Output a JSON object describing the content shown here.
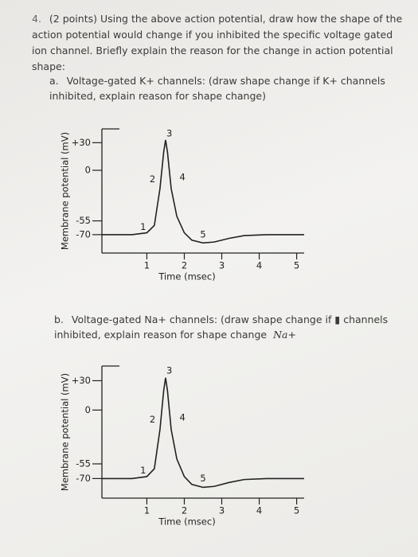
{
  "question": {
    "number": "4.",
    "points": "(2 points)",
    "text": "Using the above action potential, draw how the shape of the action potential would change if you inhibited the specific voltage gated ion channel. Briefly explain the reason for the change in action potential shape:"
  },
  "parts": [
    {
      "letter": "a.",
      "text": "Voltage-gated K+ channels: (draw shape change if K+ channels inhibited, explain reason for shape change)"
    },
    {
      "letter": "b.",
      "text": "Voltage-gated Na+ channels: (draw shape change if ▮ channels inhibited, explain reason for shape change",
      "handwritten": "Na+"
    }
  ],
  "chart_data": [
    {
      "type": "line",
      "xlabel": "Time (msec)",
      "ylabel": "Membrane potential (mV)",
      "color": "#222222",
      "x": [
        -0.2,
        0.6,
        1.0,
        1.2,
        1.35,
        1.45,
        1.5,
        1.55,
        1.65,
        1.8,
        2.0,
        2.2,
        2.5,
        2.8,
        3.2,
        3.6,
        4.2,
        5.2
      ],
      "values": [
        -70,
        -70,
        -68,
        -60,
        -20,
        20,
        33,
        20,
        -20,
        -50,
        -68,
        -76,
        -79,
        -78,
        -74,
        -71,
        -70,
        -70
      ],
      "xlim": [
        -0.2,
        5.2
      ],
      "ylim": [
        -90,
        45
      ],
      "xticks": [
        1,
        2,
        3,
        4,
        5
      ],
      "yticks": [
        {
          "value": 30,
          "label": "+30"
        },
        0,
        -55,
        -70
      ],
      "annotations": [
        {
          "text": "1",
          "x": 0.9,
          "y": -62
        },
        {
          "text": "2",
          "x": 1.15,
          "y": -10
        },
        {
          "text": "3",
          "x": 1.6,
          "y": 40
        },
        {
          "text": "4",
          "x": 1.95,
          "y": -8
        },
        {
          "text": "5",
          "x": 2.5,
          "y": -70
        }
      ]
    },
    {
      "type": "line",
      "xlabel": "Time (msec)",
      "ylabel": "Membrane potential (mV)",
      "color": "#222222",
      "x": [
        -0.2,
        0.6,
        1.0,
        1.2,
        1.35,
        1.45,
        1.5,
        1.55,
        1.65,
        1.8,
        2.0,
        2.2,
        2.5,
        2.8,
        3.2,
        3.6,
        4.2,
        5.2
      ],
      "values": [
        -70,
        -70,
        -68,
        -60,
        -20,
        20,
        33,
        20,
        -20,
        -50,
        -68,
        -76,
        -79,
        -78,
        -74,
        -71,
        -70,
        -70
      ],
      "xlim": [
        -0.2,
        5.2
      ],
      "ylim": [
        -90,
        45
      ],
      "xticks": [
        1,
        2,
        3,
        4,
        5
      ],
      "yticks": [
        {
          "value": 30,
          "label": "+30"
        },
        0,
        -55,
        -70
      ],
      "annotations": [
        {
          "text": "1",
          "x": 0.9,
          "y": -62
        },
        {
          "text": "2",
          "x": 1.15,
          "y": -10
        },
        {
          "text": "3",
          "x": 1.6,
          "y": 40
        },
        {
          "text": "4",
          "x": 1.95,
          "y": -8
        },
        {
          "text": "5",
          "x": 2.5,
          "y": -70
        }
      ]
    }
  ]
}
